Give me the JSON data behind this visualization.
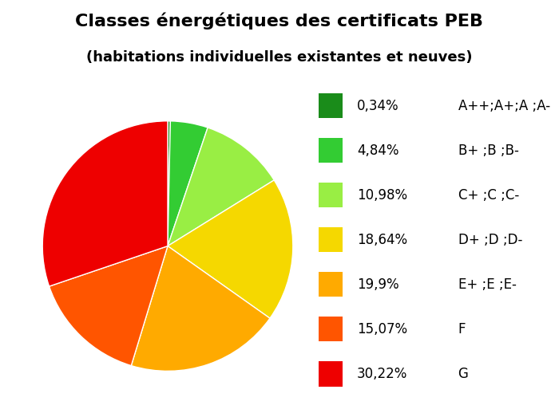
{
  "title_line1": "Classes énergétiques des certificats PEB",
  "title_line2": "(habitations individuelles existantes et neuves)",
  "slices": [
    {
      "label": "A++;A+;A ;A-",
      "pct": 0.34,
      "color": "#1a8c1a"
    },
    {
      "label": "B+ ;B ;B-",
      "pct": 4.84,
      "color": "#33cc33"
    },
    {
      "label": "C+ ;C ;C-",
      "pct": 10.98,
      "color": "#99ee44"
    },
    {
      "label": "D+ ;D ;D-",
      "pct": 18.64,
      "color": "#f5d800"
    },
    {
      "label": "E+ ;E ;E-",
      "pct": 19.9,
      "color": "#ffaa00"
    },
    {
      "label": "F",
      "pct": 15.07,
      "color": "#ff5500"
    },
    {
      "label": "G",
      "pct": 30.22,
      "color": "#ee0000"
    }
  ],
  "pct_labels": [
    "0,34%",
    "4,84%",
    "10,98%",
    "18,64%",
    "19,9%",
    "15,07%",
    "30,22%"
  ],
  "background_color": "#ffffff",
  "title_fontsize": 16,
  "subtitle_fontsize": 13,
  "legend_fontsize": 12
}
